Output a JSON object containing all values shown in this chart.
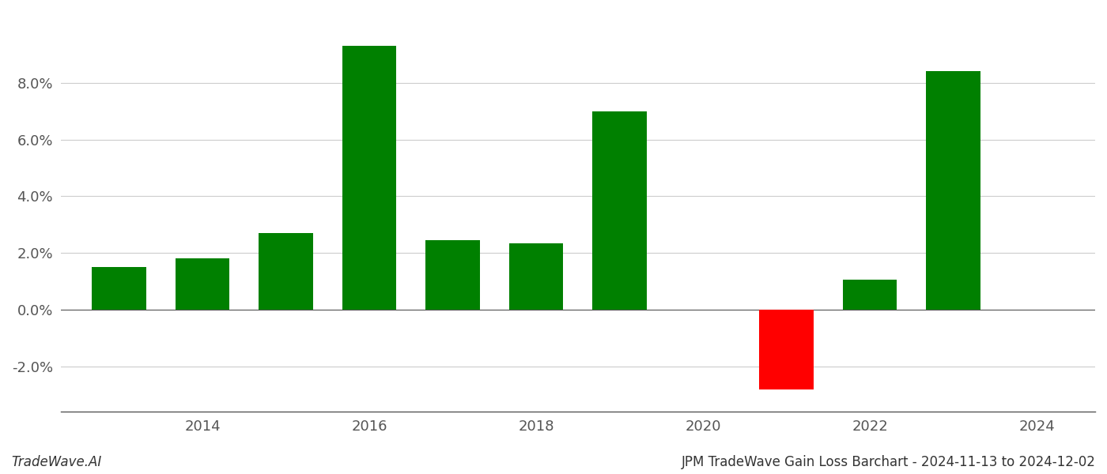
{
  "years": [
    2013,
    2014,
    2015,
    2016,
    2017,
    2018,
    2019,
    2021,
    2022,
    2023
  ],
  "values": [
    1.5,
    1.8,
    2.7,
    9.3,
    2.45,
    2.35,
    7.0,
    -2.8,
    1.05,
    8.4
  ],
  "colors": [
    "#008000",
    "#008000",
    "#008000",
    "#008000",
    "#008000",
    "#008000",
    "#008000",
    "#ff0000",
    "#008000",
    "#008000"
  ],
  "footer_left": "TradeWave.AI",
  "footer_right": "JPM TradeWave Gain Loss Barchart - 2024-11-13 to 2024-12-02",
  "ylim_min": -3.6,
  "ylim_max": 10.5,
  "yticks": [
    -2.0,
    0.0,
    2.0,
    4.0,
    6.0,
    8.0
  ],
  "xticks": [
    2014,
    2016,
    2018,
    2020,
    2022,
    2024
  ],
  "xlim_min": 2012.3,
  "xlim_max": 2024.7,
  "background_color": "#ffffff",
  "grid_color": "#cccccc",
  "bar_width": 0.65
}
